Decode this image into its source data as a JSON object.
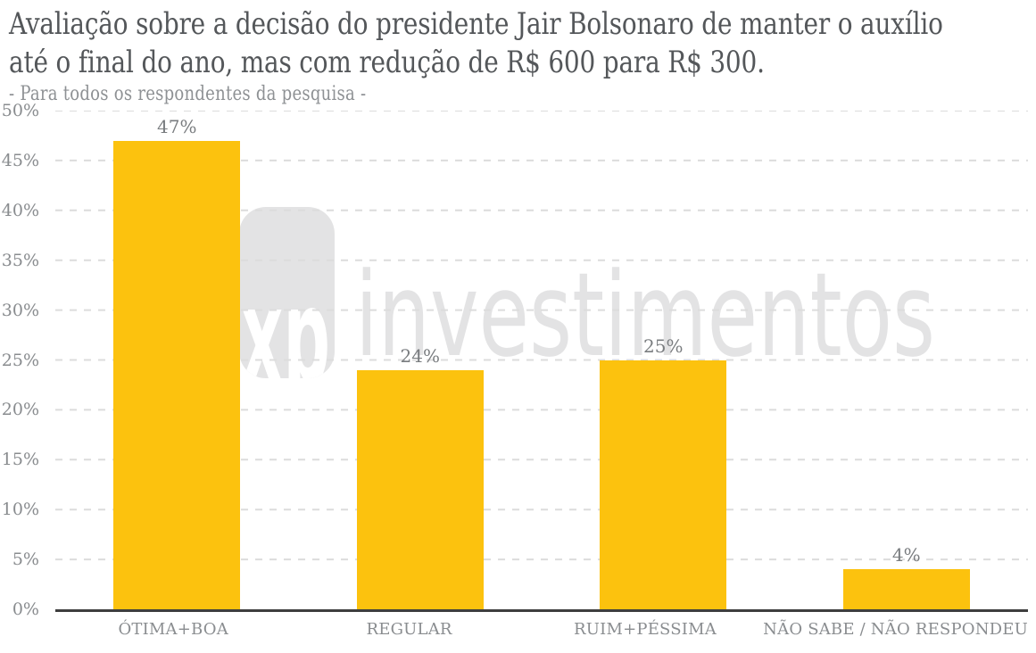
{
  "header": {
    "title_line1": "Avaliação sobre a decisão do presidente Jair Bolsonaro de manter o auxílio",
    "title_line2": "até o final do ano, mas com redução de R$ 600 para R$ 300.",
    "subtitle": "- Para todos os respondentes da pesquisa -"
  },
  "watermark": {
    "logo_text": "xp",
    "brand_text": "investimentos"
  },
  "colors": {
    "bar": "#fcc20e",
    "grid_line": "#dcdcdc",
    "axis_line": "#3e3e3e",
    "title": "#54575a",
    "subtitle": "#8e9194",
    "tick_label": "#898c8f",
    "category_label": "#8a8d90",
    "value_label": "#797c7f",
    "watermark_gray": "#e3e3e4",
    "logo_knockout": "#ffffff"
  },
  "chart_data": {
    "type": "bar",
    "title": "Avaliação sobre a decisão do presidente Jair Bolsonaro de manter o auxílio até o final do ano, mas com redução de R$ 600 para R$ 300.",
    "subtitle": "- Para todos os respondentes da pesquisa -",
    "categories": [
      "ÓTIMA+BOA",
      "REGULAR",
      "RUIM+PÉSSIMA",
      "NÃO SABE / NÃO RESPONDEU"
    ],
    "values": [
      47,
      24,
      25,
      4
    ],
    "value_labels": [
      "47%",
      "24%",
      "25%",
      "4%"
    ],
    "xlabel": "",
    "ylabel": "",
    "ylim": [
      0,
      50
    ],
    "yticks": [
      0,
      5,
      10,
      15,
      20,
      25,
      30,
      35,
      40,
      45,
      50
    ],
    "ytick_labels": [
      "0%",
      "5%",
      "10%",
      "15%",
      "20%",
      "25%",
      "30%",
      "35%",
      "40%",
      "45%",
      "50%"
    ],
    "grid": "horizontal-dashed",
    "legend": "none",
    "bar_color": "#fcc20e"
  }
}
